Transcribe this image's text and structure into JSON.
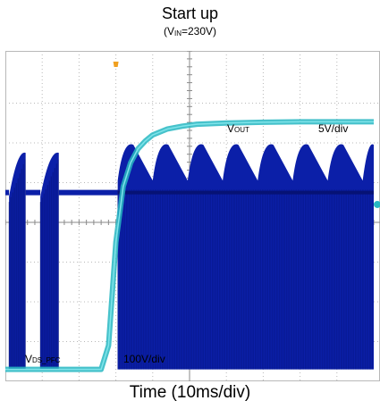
{
  "colors": {
    "grid": "#b8b8b8",
    "switching_trace": "#0b1fa8",
    "switching_trace_dark": "#061275",
    "output_trace": "#27b7c2",
    "trigger_marker": "#f0a020"
  },
  "chart_data": {
    "type": "line",
    "title": "Start up",
    "subtitle_main": "V",
    "subtitle_sub": "IN",
    "subtitle_rest": "=230V",
    "xlabel": "Time (10ms/div)",
    "ylabel": "",
    "grid": true,
    "divisions": {
      "x": 10,
      "y": 8
    },
    "series": [
      {
        "name_main": "V",
        "name_sub": "OUT",
        "scale": "5V/div",
        "units": "divisions",
        "x": [
          0,
          2.6,
          2.8,
          3.0,
          3.2,
          3.4,
          3.6,
          3.8,
          4.0,
          4.4,
          4.8,
          5.2,
          6.0,
          7.0,
          8.0,
          9.0,
          10.0
        ],
        "y": [
          0.3,
          0.3,
          0.9,
          3.5,
          4.9,
          5.5,
          5.85,
          6.05,
          6.2,
          6.35,
          6.42,
          6.47,
          6.5,
          6.52,
          6.53,
          6.53,
          6.53
        ]
      },
      {
        "name_main": "V",
        "name_sub": "DS_PFC",
        "scale": "100V/div",
        "units": "divisions",
        "bursts": [
          {
            "x_start": 0.1,
            "x_end": 0.55,
            "top_start": 4.65,
            "top_end": 5.75
          },
          {
            "x_start": 0.95,
            "x_end": 1.45,
            "top_start": 4.65,
            "top_end": 5.75
          }
        ],
        "idle_level": 4.75,
        "switching_x_start": 3.05,
        "switching_x_end": 10.0,
        "envelope_bottom": 0.3,
        "ripple_period_div": 0.95,
        "ripple_low": 5.05,
        "ripple_high": 5.95
      }
    ],
    "labels": {
      "vout_scale": "5V/div",
      "vds_scale": "100V/div"
    }
  }
}
